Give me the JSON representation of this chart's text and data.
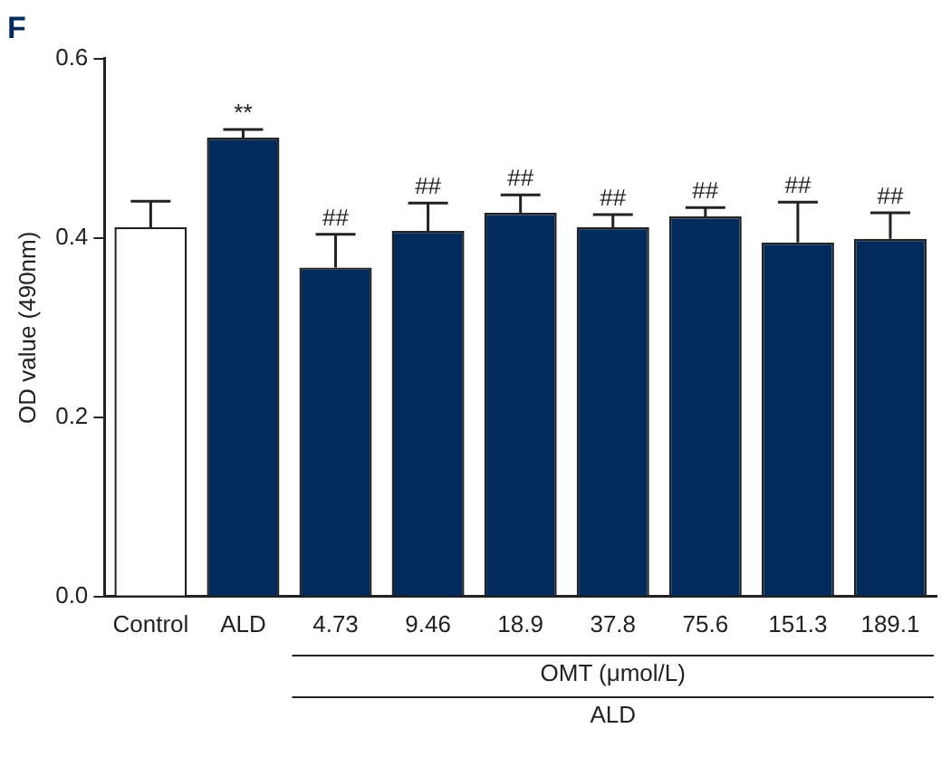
{
  "chart_data": {
    "type": "bar",
    "title": "F",
    "ylabel": "OD value (490nm)",
    "categories": [
      "Control",
      "ALD",
      "4.73",
      "9.46",
      "18.9",
      "37.8",
      "75.6",
      "151.3",
      "189.1"
    ],
    "values": [
      0.412,
      0.512,
      0.367,
      0.408,
      0.428,
      0.412,
      0.424,
      0.395,
      0.399
    ],
    "errors": [
      0.029,
      0.009,
      0.037,
      0.031,
      0.02,
      0.014,
      0.01,
      0.045,
      0.029
    ],
    "colors": [
      "#ffffff",
      "#022a5a",
      "#022a5a",
      "#022a5a",
      "#022a5a",
      "#022a5a",
      "#022a5a",
      "#022a5a",
      "#022a5a"
    ],
    "ylim": [
      0,
      0.6
    ],
    "yticks": [
      {
        "value": 0,
        "label": "0.0"
      },
      {
        "value": 0.2,
        "label": "0.2"
      },
      {
        "value": 0.4,
        "label": "0.4"
      },
      {
        "value": 0.6,
        "label": "0.6"
      }
    ],
    "grid": false,
    "legend": false,
    "annotations": [
      {
        "text": "**",
        "x": "ALD",
        "y": 0.521
      },
      {
        "text": "##",
        "x": "4.73",
        "y": 0.404
      },
      {
        "text": "##",
        "x": "9.46",
        "y": 0.439
      },
      {
        "text": "##",
        "x": "18.9",
        "y": 0.448
      },
      {
        "text": "##",
        "x": "37.8",
        "y": 0.426
      },
      {
        "text": "##",
        "x": "75.6",
        "y": 0.434
      },
      {
        "text": "##",
        "x": "151.3",
        "y": 0.44
      },
      {
        "text": "##",
        "x": "189.1",
        "y": 0.428
      },
      "OMT (μmol/L)",
      "ALD"
    ]
  }
}
